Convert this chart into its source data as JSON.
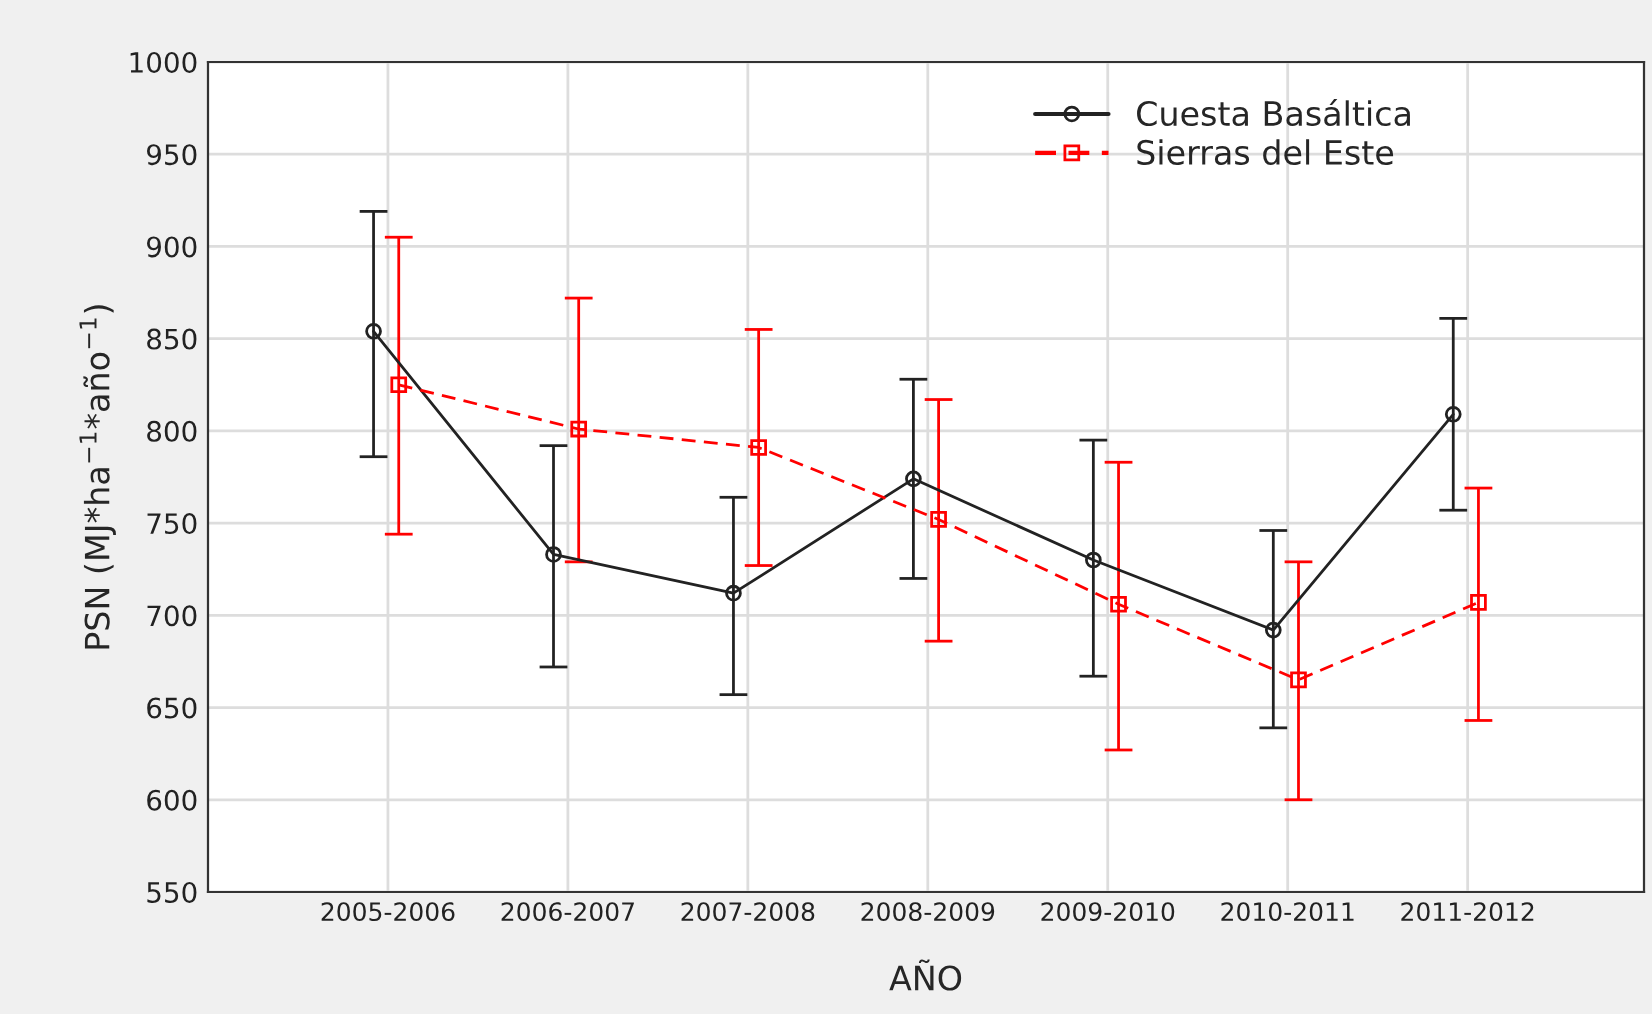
{
  "chart_data": {
    "type": "line",
    "xlabel": "AÑO",
    "ylabel": "PSN (MJ*ha$^{−1}$*año$^{−1}$)",
    "categories": [
      "2005-2006",
      "2006-2007",
      "2007-2008",
      "2008-2009",
      "2009-2010",
      "2010-2011",
      "2011-2012"
    ],
    "series": [
      {
        "name": "Cuesta Basáltica",
        "color": "#222222",
        "marker": "circle",
        "line_style": "solid",
        "values": [
          854,
          733,
          712,
          774,
          730,
          692,
          809
        ],
        "errors": [
          [
            786,
            919
          ],
          [
            672,
            792
          ],
          [
            657,
            764
          ],
          [
            720,
            828
          ],
          [
            667,
            795
          ],
          [
            639,
            746
          ],
          [
            757,
            861
          ]
        ]
      },
      {
        "name": "Sierras del Este",
        "color": "#ff0000",
        "marker": "square",
        "line_style": "dashed",
        "values": [
          825,
          801,
          791,
          752,
          706,
          665,
          707
        ],
        "errors": [
          [
            744,
            905
          ],
          [
            729,
            872
          ],
          [
            727,
            855
          ],
          [
            686,
            817
          ],
          [
            627,
            783
          ],
          [
            600,
            729
          ],
          [
            643,
            769
          ]
        ]
      }
    ],
    "ylim": [
      550,
      1000
    ],
    "yticks": [
      550,
      600,
      650,
      700,
      750,
      800,
      850,
      900,
      950,
      1000
    ],
    "grid": true,
    "legend": "top right"
  }
}
